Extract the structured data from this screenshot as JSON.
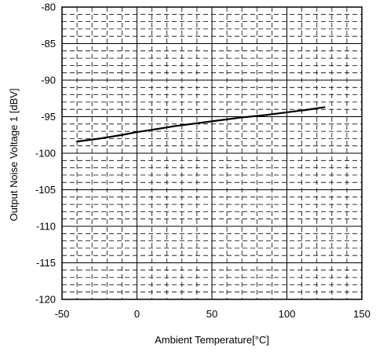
{
  "chart_data": {
    "type": "line",
    "title": "",
    "xlabel": "Ambient Temperature[°C]",
    "ylabel": "Output Noise Voltage 1 [dBV]",
    "xlim": [
      -50,
      150
    ],
    "ylim": [
      -120,
      -80
    ],
    "x_major_step": 50,
    "y_major_step": 5,
    "x_minor_step": 10,
    "y_minor_step": 1,
    "x_ticks": [
      "-50",
      "0",
      "50",
      "100",
      "150"
    ],
    "y_ticks": [
      "-80",
      "-85",
      "-90",
      "-95",
      "-100",
      "-105",
      "-110",
      "-115",
      "-120"
    ],
    "grid": true,
    "legend": "none",
    "colors": {
      "line": "#000000",
      "grid_major": "#000000",
      "grid_minor": "#000000",
      "background": "#ffffff"
    },
    "series": [
      {
        "x": [
          -40,
          -25,
          -10,
          0,
          10,
          25,
          40,
          55,
          70,
          85,
          100,
          112,
          125
        ],
        "y": [
          -98.4,
          -98.0,
          -97.5,
          -97.1,
          -96.8,
          -96.3,
          -95.9,
          -95.5,
          -95.1,
          -94.8,
          -94.4,
          -94.1,
          -93.7
        ]
      }
    ]
  }
}
